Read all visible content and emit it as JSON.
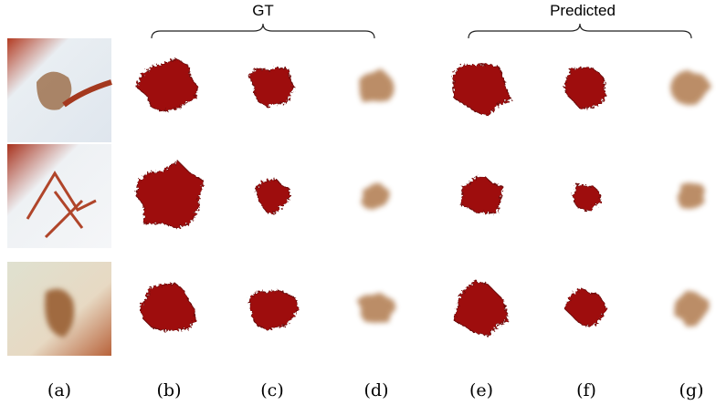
{
  "header": {
    "groups": [
      "GT",
      "Predicted"
    ]
  },
  "columns": [
    "(a)",
    "(b)",
    "(c)",
    "(d)",
    "(e)",
    "(f)",
    "(g)"
  ]
}
